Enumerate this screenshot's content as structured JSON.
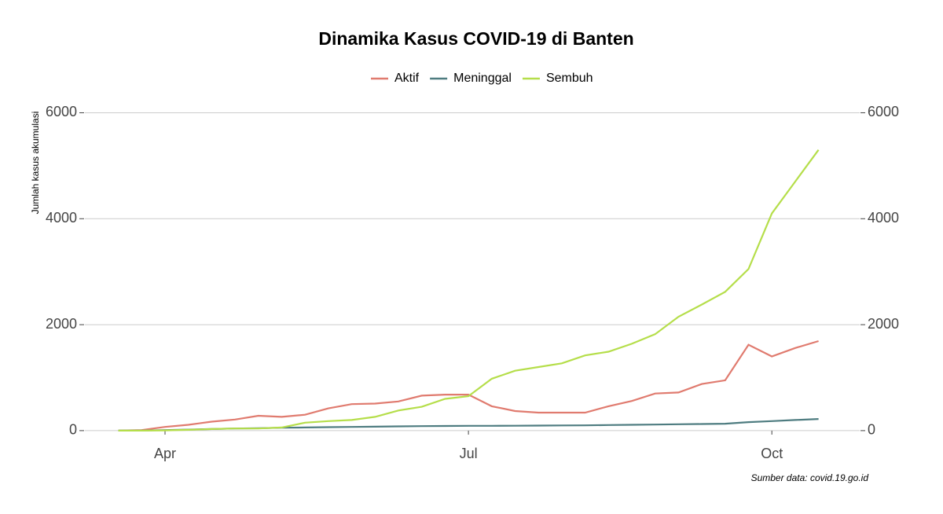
{
  "chart_data": {
    "type": "line",
    "title": "Dinamika Kasus COVID-19 di Banten",
    "y_label": "Jumlah kasus akumulasi",
    "caption": "Sumber data: covid.19.go.id",
    "categories": [
      null,
      null,
      "Apr",
      null,
      null,
      null,
      null,
      null,
      null,
      null,
      null,
      null,
      null,
      null,
      null,
      "Jul",
      null,
      null,
      null,
      null,
      null,
      null,
      null,
      null,
      null,
      null,
      null,
      null,
      "Oct",
      null,
      null
    ],
    "series": [
      {
        "name": "Aktif",
        "color": "#e07b6f",
        "values": [
          0,
          10,
          70,
          110,
          170,
          210,
          280,
          260,
          300,
          420,
          500,
          510,
          550,
          660,
          680,
          680,
          460,
          370,
          340,
          340,
          340,
          460,
          560,
          700,
          720,
          880,
          950,
          1620,
          1400,
          1560,
          1690
        ]
      },
      {
        "name": "Meninggal",
        "color": "#4e7c80",
        "values": [
          0,
          2,
          10,
          20,
          30,
          40,
          45,
          55,
          60,
          65,
          70,
          75,
          80,
          85,
          88,
          90,
          90,
          92,
          95,
          98,
          100,
          105,
          110,
          115,
          120,
          125,
          130,
          160,
          180,
          200,
          220
        ]
      },
      {
        "name": "Sembuh",
        "color": "#b5de4a",
        "values": [
          0,
          0,
          5,
          15,
          30,
          40,
          40,
          60,
          150,
          180,
          200,
          260,
          380,
          450,
          600,
          650,
          980,
          1130,
          1200,
          1270,
          1420,
          1490,
          1640,
          1820,
          2150,
          2380,
          2620,
          3050,
          4100,
          4700,
          5300
        ]
      }
    ],
    "ylim": [
      -120,
      6200
    ],
    "yticks": [
      0,
      2000,
      4000,
      6000
    ],
    "y2lim": [
      -120,
      6200
    ],
    "y2ticks": [
      0,
      2000,
      4000,
      6000
    ],
    "grid": true,
    "legend": "top"
  }
}
